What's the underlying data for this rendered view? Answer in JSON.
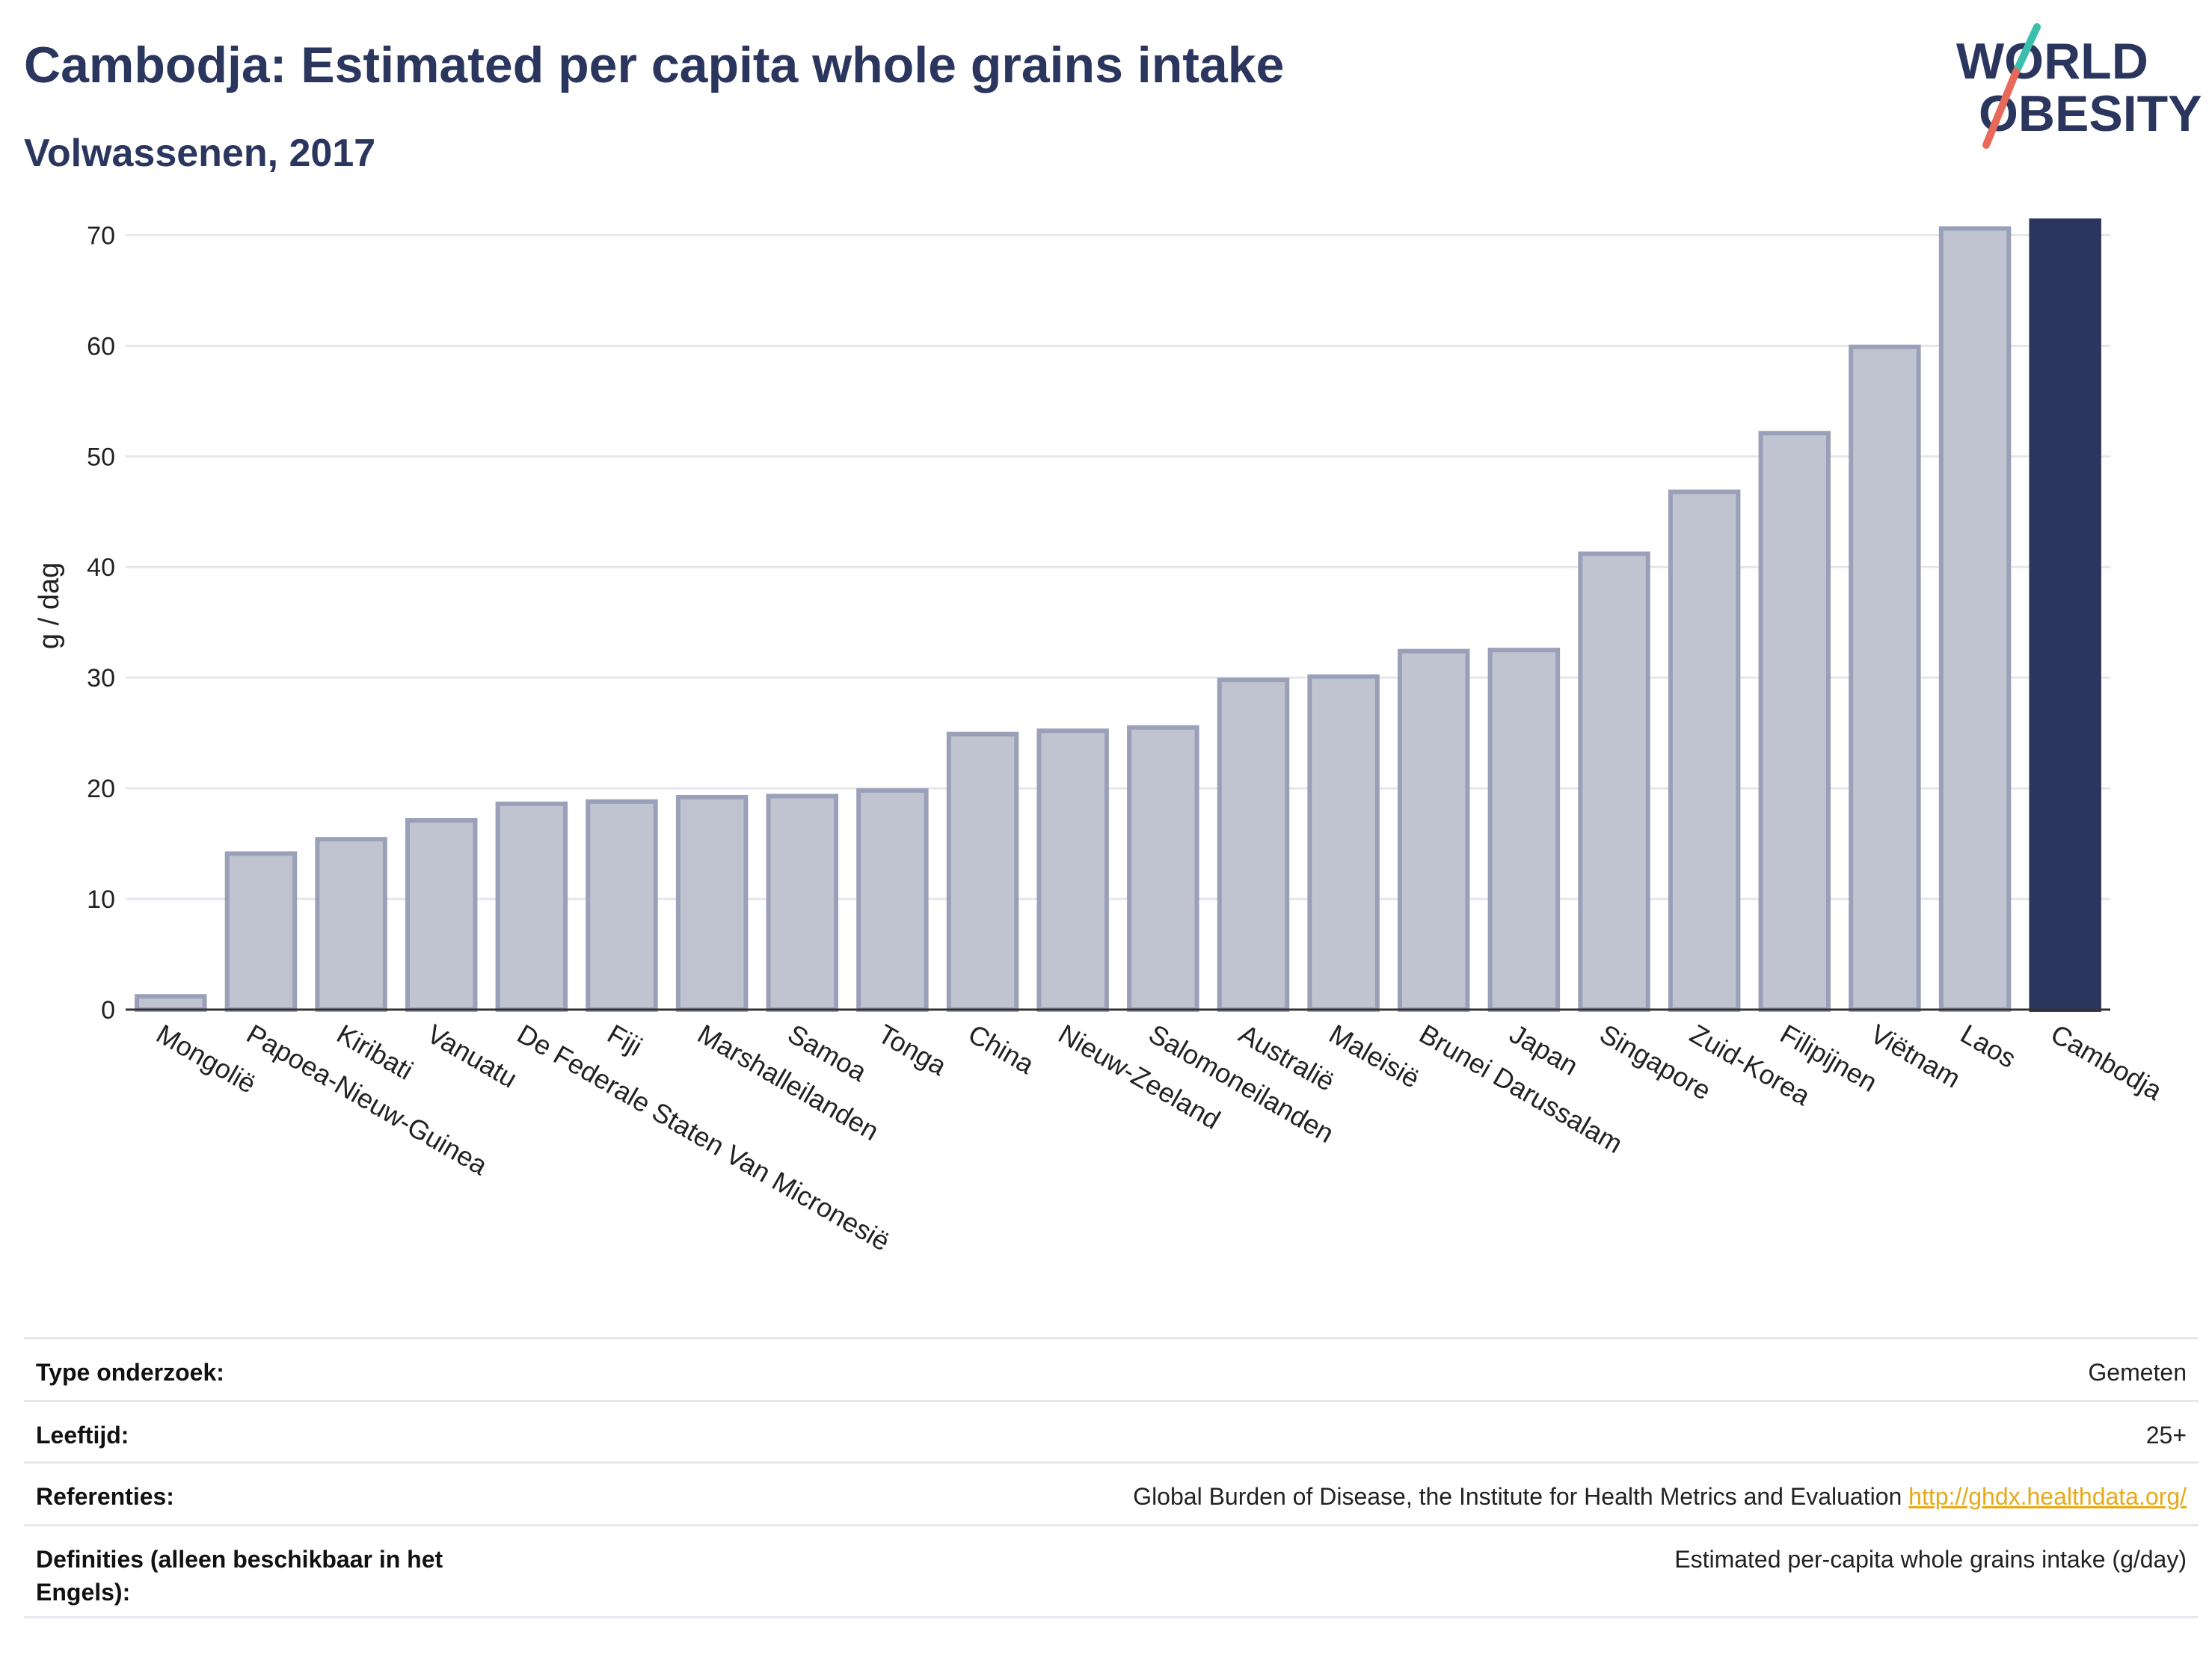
{
  "header": {
    "title": "Cambodja: Estimated per capita whole grains intake",
    "subtitle": "Volwassenen, 2017"
  },
  "logo": {
    "line1": "WORLD",
    "line2": "OBESITY",
    "colors": {
      "text": "#2b365f",
      "slash_top": "#3bbfad",
      "slash_bottom": "#e8685a"
    }
  },
  "chart_data": {
    "type": "bar",
    "ylabel": "g / dag",
    "xlabel": "",
    "ylim": [
      0,
      73
    ],
    "yticks": [
      0,
      10,
      20,
      30,
      40,
      50,
      60,
      70
    ],
    "grid": true,
    "categories": [
      "Mongolië",
      "Papoea-Nieuw-Guinea",
      "Kiribati",
      "Vanuatu",
      "De Federale Staten Van Micronesië",
      "Fiji",
      "Marshalleilanden",
      "Samoa",
      "Tonga",
      "China",
      "Nieuw-Zeeland",
      "Salomoneilanden",
      "Australië",
      "Maleisië",
      "Brunei Darussalam",
      "Japan",
      "Singapore",
      "Zuid-Korea",
      "Filipijnen",
      "Viëtnam",
      "Laos",
      "Cambodja"
    ],
    "values": [
      1.2,
      14.1,
      15.4,
      17.1,
      18.6,
      18.8,
      19.2,
      19.3,
      19.8,
      24.9,
      25.2,
      25.5,
      29.8,
      30.1,
      32.4,
      32.5,
      41.2,
      46.8,
      52.1,
      59.9,
      70.6,
      71.3
    ],
    "highlight": "Cambodja",
    "colors": {
      "bar": "#c0c4d0",
      "bar_border": "#9aa0b8",
      "highlight": "#2b365f",
      "axis": "#333333",
      "grid": "#e6e6ec"
    }
  },
  "info": {
    "rows": [
      {
        "key": "Type onderzoek:",
        "value": "Gemeten"
      },
      {
        "key": "Leeftijd:",
        "value": "25+"
      },
      {
        "key": "Referenties:",
        "value": "Global Burden of Disease, the Institute for Health Metrics and Evaluation",
        "link": "http://ghdx.healthdata.org/"
      },
      {
        "key": "Definities (alleen beschikbaar in het Engels):",
        "value": "Estimated per-capita whole grains intake (g/day)"
      }
    ]
  }
}
